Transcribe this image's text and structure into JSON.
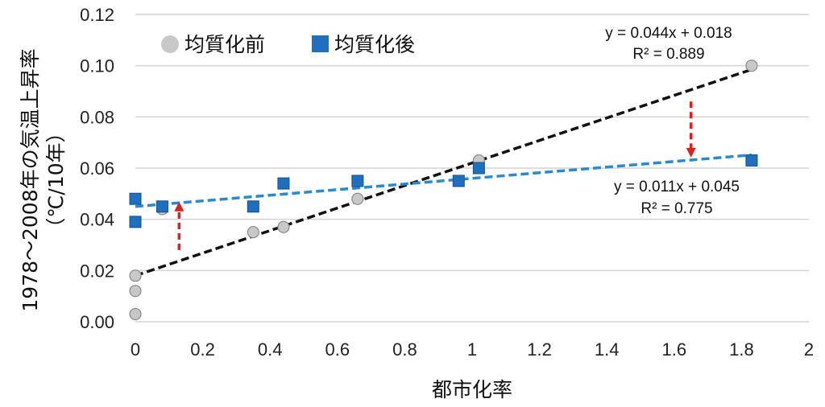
{
  "chart_data": {
    "type": "scatter",
    "title": "",
    "xlabel": "都市化率",
    "ylabel_line1": "1978～2008年の気温上昇率",
    "ylabel_line2": "（℃/10年）",
    "xlim": [
      0,
      2
    ],
    "ylim": [
      0,
      0.12
    ],
    "x_ticks": [
      "0",
      "0.2",
      "0.4",
      "0.6",
      "0.8",
      "1",
      "1.2",
      "1.4",
      "1.6",
      "1.8",
      "2"
    ],
    "y_ticks": [
      "0.00",
      "0.02",
      "0.04",
      "0.06",
      "0.08",
      "0.10",
      "0.12"
    ],
    "grid": "horizontal",
    "legend": "top-left",
    "series": [
      {
        "name": "均質化前",
        "marker": "circle",
        "color": "#c8c8c8",
        "points": [
          {
            "x": 0,
            "y": 0.003
          },
          {
            "x": 0,
            "y": 0.012
          },
          {
            "x": 0,
            "y": 0.018
          },
          {
            "x": 0.08,
            "y": 0.044
          },
          {
            "x": 0.35,
            "y": 0.035
          },
          {
            "x": 0.44,
            "y": 0.037
          },
          {
            "x": 0.66,
            "y": 0.048
          },
          {
            "x": 1.02,
            "y": 0.063
          },
          {
            "x": 1.83,
            "y": 0.1
          }
        ],
        "trendline": {
          "slope": 0.044,
          "intercept": 0.018,
          "color": "#111111",
          "equation": "y = 0.044x + 0.018",
          "r2": "R² = 0.889"
        }
      },
      {
        "name": "均質化後",
        "marker": "square",
        "color": "#1f6fbf",
        "points": [
          {
            "x": 0,
            "y": 0.039
          },
          {
            "x": 0,
            "y": 0.048
          },
          {
            "x": 0.08,
            "y": 0.045
          },
          {
            "x": 0.35,
            "y": 0.045
          },
          {
            "x": 0.44,
            "y": 0.054
          },
          {
            "x": 0.66,
            "y": 0.055
          },
          {
            "x": 0.96,
            "y": 0.055
          },
          {
            "x": 1.02,
            "y": 0.06
          },
          {
            "x": 1.83,
            "y": 0.063
          }
        ],
        "trendline": {
          "slope": 0.011,
          "intercept": 0.045,
          "color": "#2a8ad0",
          "equation": "y = 0.011x + 0.045",
          "r2": "R² = 0.775"
        }
      }
    ],
    "annotations": [
      {
        "type": "arrow",
        "direction": "up",
        "x": 0.13,
        "y_from": 0.028,
        "y_to": 0.045,
        "color": "#e02020"
      },
      {
        "type": "arrow",
        "direction": "down",
        "x": 1.65,
        "y_from": 0.086,
        "y_to": 0.066,
        "color": "#e02020"
      }
    ]
  }
}
